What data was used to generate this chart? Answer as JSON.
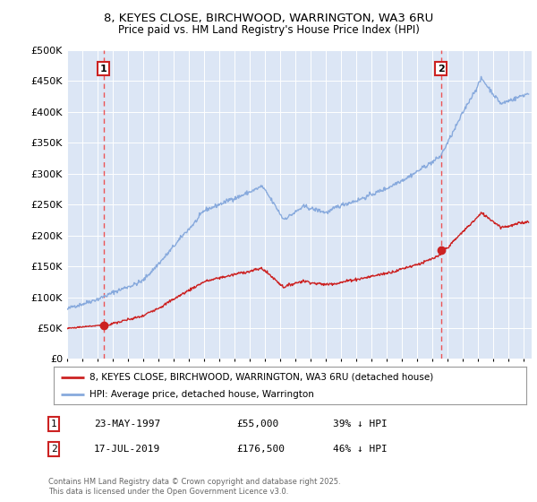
{
  "title_line1": "8, KEYES CLOSE, BIRCHWOOD, WARRINGTON, WA3 6RU",
  "title_line2": "Price paid vs. HM Land Registry's House Price Index (HPI)",
  "background_color": "#dce6f5",
  "fig_bg_color": "#ffffff",
  "ylim": [
    0,
    500000
  ],
  "xlim_start": 1995.0,
  "xlim_end": 2025.5,
  "yticks": [
    0,
    50000,
    100000,
    150000,
    200000,
    250000,
    300000,
    350000,
    400000,
    450000,
    500000
  ],
  "ytick_labels": [
    "£0",
    "£50K",
    "£100K",
    "£150K",
    "£200K",
    "£250K",
    "£300K",
    "£350K",
    "£400K",
    "£450K",
    "£500K"
  ],
  "sale1_x": 1997.39,
  "sale1_y": 55000,
  "sale1_label": "1",
  "sale2_x": 2019.54,
  "sale2_y": 176500,
  "sale2_label": "2",
  "red_color": "#cc2222",
  "blue_color": "#88aadd",
  "dashed_color": "#ee4444",
  "legend_label_red": "8, KEYES CLOSE, BIRCHWOOD, WARRINGTON, WA3 6RU (detached house)",
  "legend_label_blue": "HPI: Average price, detached house, Warrington",
  "note1_label": "1",
  "note1_date": "23-MAY-1997",
  "note1_price": "£55,000",
  "note1_hpi": "39% ↓ HPI",
  "note2_label": "2",
  "note2_date": "17-JUL-2019",
  "note2_price": "£176,500",
  "note2_hpi": "46% ↓ HPI",
  "copyright": "Contains HM Land Registry data © Crown copyright and database right 2025.\nThis data is licensed under the Open Government Licence v3.0."
}
